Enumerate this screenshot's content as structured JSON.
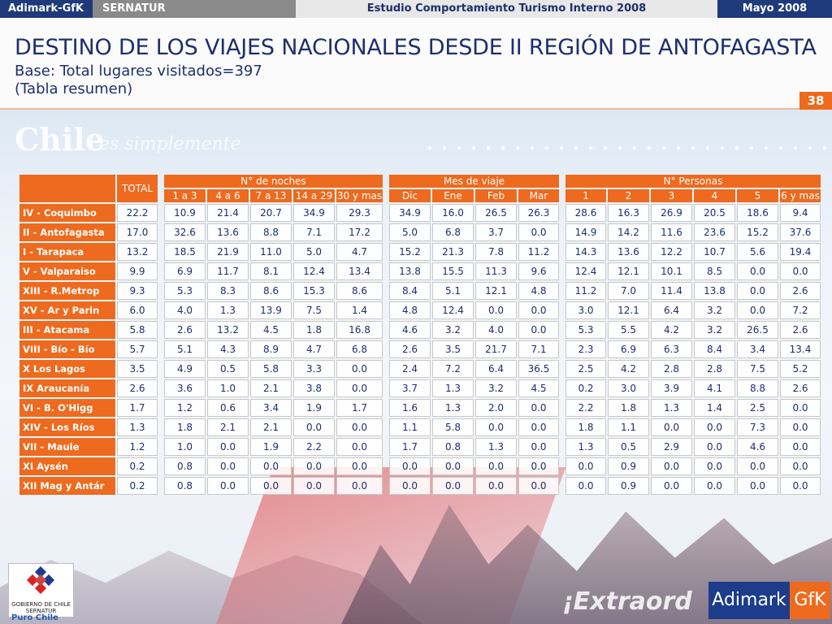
{
  "topbar": {
    "brand": "Adimark-GfK",
    "client": "SERNATUR",
    "study": "Estudio Comportamiento Turismo Interno 2008",
    "date": "Mayo 2008"
  },
  "title": "DESTINO DE LOS VIAJES NACIONALES DESDE II REGIÓN DE ANTOFAGASTA",
  "subtitle": "Base: Total lugares visitados=397",
  "subtitle2": "(Tabla resumen)",
  "page_number": "38",
  "background": {
    "chile_text": "Chile",
    "tagline": "es simplemente",
    "extra": "¡Extraord"
  },
  "logos": {
    "gob_line1": "GOBIERNO DE CHILE",
    "gob_line2": "SERNATUR",
    "puro": "Puro Chile",
    "adimark": "Adimark",
    "gfk": "GfK"
  },
  "table": {
    "total_header": "TOTAL",
    "groups": {
      "noches": "N° de noches",
      "mes": "Mes de viaje",
      "personas": "N° Personas"
    },
    "noches_cols": [
      "1 a 3",
      "4 a 6",
      "7 a 13",
      "14 a 29",
      "30 y mas"
    ],
    "mes_cols": [
      "Dic",
      "Ene",
      "Feb",
      "Mar"
    ],
    "personas_cols": [
      "1",
      "2",
      "3",
      "4",
      "5",
      "6 y mas"
    ],
    "rows": [
      {
        "label": "IV - Coquimbo",
        "total": "22.2",
        "noches": [
          "10.9",
          "21.4",
          "20.7",
          "34.9",
          "29.3"
        ],
        "mes": [
          "34.9",
          "16.0",
          "26.5",
          "26.3"
        ],
        "personas": [
          "28.6",
          "16.3",
          "26.9",
          "20.5",
          "18.6",
          "9.4"
        ]
      },
      {
        "label": "II - Antofagasta",
        "total": "17.0",
        "noches": [
          "32.6",
          "13.6",
          "8.8",
          "7.1",
          "17.2"
        ],
        "mes": [
          "5.0",
          "6.8",
          "3.7",
          "0.0"
        ],
        "personas": [
          "14.9",
          "14.2",
          "11.6",
          "23.6",
          "15.2",
          "37.6"
        ]
      },
      {
        "label": "I - Tarapaca",
        "total": "13.2",
        "noches": [
          "18.5",
          "21.9",
          "11.0",
          "5.0",
          "4.7"
        ],
        "mes": [
          "15.2",
          "21.3",
          "7.8",
          "11.2"
        ],
        "personas": [
          "14.3",
          "13.6",
          "12.2",
          "10.7",
          "5.6",
          "19.4"
        ]
      },
      {
        "label": "V - Valparaiso",
        "total": "9.9",
        "noches": [
          "6.9",
          "11.7",
          "8.1",
          "12.4",
          "13.4"
        ],
        "mes": [
          "13.8",
          "15.5",
          "11.3",
          "9.6"
        ],
        "personas": [
          "12.4",
          "12.1",
          "10.1",
          "8.5",
          "0.0",
          "0.0"
        ]
      },
      {
        "label": "XIII - R.Metrop",
        "total": "9.3",
        "noches": [
          "5.3",
          "8.3",
          "8.6",
          "15.3",
          "8.6"
        ],
        "mes": [
          "8.4",
          "5.1",
          "12.1",
          "4.8"
        ],
        "personas": [
          "11.2",
          "7.0",
          "11.4",
          "13.8",
          "0.0",
          "2.6"
        ]
      },
      {
        "label": "XV - Ar y Parin",
        "total": "6.0",
        "noches": [
          "4.0",
          "1.3",
          "13.9",
          "7.5",
          "1.4"
        ],
        "mes": [
          "4.8",
          "12.4",
          "0.0",
          "0.0"
        ],
        "personas": [
          "3.0",
          "12.1",
          "6.4",
          "3.2",
          "0.0",
          "7.2"
        ]
      },
      {
        "label": "III - Atacama",
        "total": "5.8",
        "noches": [
          "2.6",
          "13.2",
          "4.5",
          "1.8",
          "16.8"
        ],
        "mes": [
          "4.6",
          "3.2",
          "4.0",
          "0.0"
        ],
        "personas": [
          "5.3",
          "5.5",
          "4.2",
          "3.2",
          "26.5",
          "2.6"
        ]
      },
      {
        "label": "VIII - Bío - Bío",
        "total": "5.7",
        "noches": [
          "5.1",
          "4.3",
          "8.9",
          "4.7",
          "6.8"
        ],
        "mes": [
          "2.6",
          "3.5",
          "21.7",
          "7.1"
        ],
        "personas": [
          "2.3",
          "6.9",
          "6.3",
          "8.4",
          "3.4",
          "13.4"
        ]
      },
      {
        "label": "X Los Lagos",
        "total": "3.5",
        "noches": [
          "4.9",
          "0.5",
          "5.8",
          "3.3",
          "0.0"
        ],
        "mes": [
          "2.4",
          "7.2",
          "6.4",
          "36.5"
        ],
        "personas": [
          "2.5",
          "4.2",
          "2.8",
          "2.8",
          "7.5",
          "5.2"
        ]
      },
      {
        "label": "IX Araucanía",
        "total": "2.6",
        "noches": [
          "3.6",
          "1.0",
          "2.1",
          "3.8",
          "0.0"
        ],
        "mes": [
          "3.7",
          "1.3",
          "3.2",
          "4.5"
        ],
        "personas": [
          "0.2",
          "3.0",
          "3.9",
          "4.1",
          "8.8",
          "2.6"
        ]
      },
      {
        "label": "VI - B. O'Higg",
        "total": "1.7",
        "noches": [
          "1.2",
          "0.6",
          "3.4",
          "1.9",
          "1.7"
        ],
        "mes": [
          "1.6",
          "1.3",
          "2.0",
          "0.0"
        ],
        "personas": [
          "2.2",
          "1.8",
          "1.3",
          "1.4",
          "2.5",
          "0.0"
        ]
      },
      {
        "label": "XIV - Los Ríos",
        "total": "1.3",
        "noches": [
          "1.8",
          "2.1",
          "2.1",
          "0.0",
          "0.0"
        ],
        "mes": [
          "1.1",
          "5.8",
          "0.0",
          "0.0"
        ],
        "personas": [
          "1.8",
          "1.1",
          "0.0",
          "0.0",
          "7.3",
          "0.0"
        ]
      },
      {
        "label": "VII - Maule",
        "total": "1.2",
        "noches": [
          "1.0",
          "0.0",
          "1.9",
          "2.2",
          "0.0"
        ],
        "mes": [
          "1.7",
          "0.8",
          "1.3",
          "0.0"
        ],
        "personas": [
          "1.3",
          "0.5",
          "2.9",
          "0.0",
          "4.6",
          "0.0"
        ]
      },
      {
        "label": "XI Aysén",
        "total": "0.2",
        "noches": [
          "0.8",
          "0.0",
          "0.0",
          "0.0",
          "0.0"
        ],
        "mes": [
          "0.0",
          "0.0",
          "0.0",
          "0.0"
        ],
        "personas": [
          "0.0",
          "0.9",
          "0.0",
          "0.0",
          "0.0",
          "0.0"
        ]
      },
      {
        "label": "XII Mag y Antár",
        "total": "0.2",
        "noches": [
          "0.8",
          "0.0",
          "0.0",
          "0.0",
          "0.0"
        ],
        "mes": [
          "0.0",
          "0.0",
          "0.0",
          "0.0"
        ],
        "personas": [
          "0.0",
          "0.9",
          "0.0",
          "0.0",
          "0.0",
          "0.0"
        ]
      }
    ]
  }
}
